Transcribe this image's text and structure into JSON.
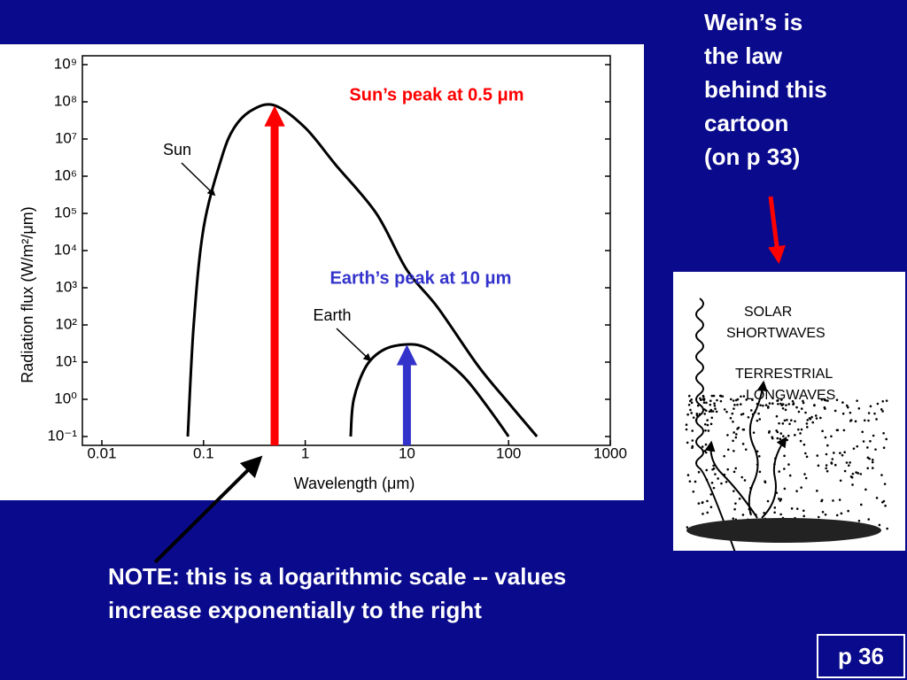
{
  "chart_data": {
    "type": "line",
    "x_label": "Wavelength (μm)",
    "y_label": "Radiation flux (W/m²/μm)",
    "xlim": [
      0.01,
      1000
    ],
    "ylim": [
      0.1,
      1000000000
    ],
    "xscale": "log",
    "yscale": "log",
    "xticks": [
      0.01,
      0.1,
      1,
      10,
      100,
      1000
    ],
    "yticks": [
      {
        "value": 0.1,
        "label": "10⁻¹"
      },
      {
        "value": 1,
        "label": "10⁰"
      },
      {
        "value": 10,
        "label": "10¹"
      },
      {
        "value": 100,
        "label": "10²"
      },
      {
        "value": 1000,
        "label": "10³"
      },
      {
        "value": 10000,
        "label": "10⁴"
      },
      {
        "value": 100000,
        "label": "10⁵"
      },
      {
        "value": 1000000,
        "label": "10⁶"
      },
      {
        "value": 10000000,
        "label": "10⁷"
      },
      {
        "value": 100000000,
        "label": "10⁸"
      },
      {
        "value": 1000000000,
        "label": "10⁹"
      }
    ],
    "series": [
      {
        "name": "Sun",
        "color": "#000000",
        "x": [
          0.07,
          0.08,
          0.1,
          0.15,
          0.2,
          0.3,
          0.5,
          1,
          2,
          5,
          10,
          20,
          50,
          100,
          190
        ],
        "values": [
          0.1,
          100,
          40000,
          3000000,
          20000000,
          60000000,
          80000000,
          20000000,
          2000000,
          100000,
          3000,
          300,
          8,
          0.8,
          0.1
        ]
      },
      {
        "name": "Earth",
        "color": "#000000",
        "x": [
          2.8,
          3,
          4,
          6,
          10,
          15,
          25,
          40,
          70,
          100
        ],
        "values": [
          0.1,
          1,
          8,
          22,
          30,
          25,
          10,
          3,
          0.4,
          0.1
        ]
      }
    ],
    "annotations": [
      {
        "text": "Sun’s peak at 0.5 μm",
        "x": 0.5,
        "y": 80000000,
        "color": "#ff0000"
      },
      {
        "text": "Earth’s peak at 10 μm",
        "x": 10,
        "y": 30,
        "color": "#3333cc"
      }
    ]
  },
  "side_note": [
    "Wein’s is",
    "the law",
    "behind this",
    "cartoon",
    "(on p 33)"
  ],
  "cartoon": {
    "labels": [
      "SOLAR",
      "SHORTWAVES",
      "TERRESTRIAL",
      "LONGWAVES"
    ]
  },
  "note": [
    "NOTE: this is a logarithmic scale -- values",
    "increase exponentially to the right"
  ],
  "page": "p 36"
}
